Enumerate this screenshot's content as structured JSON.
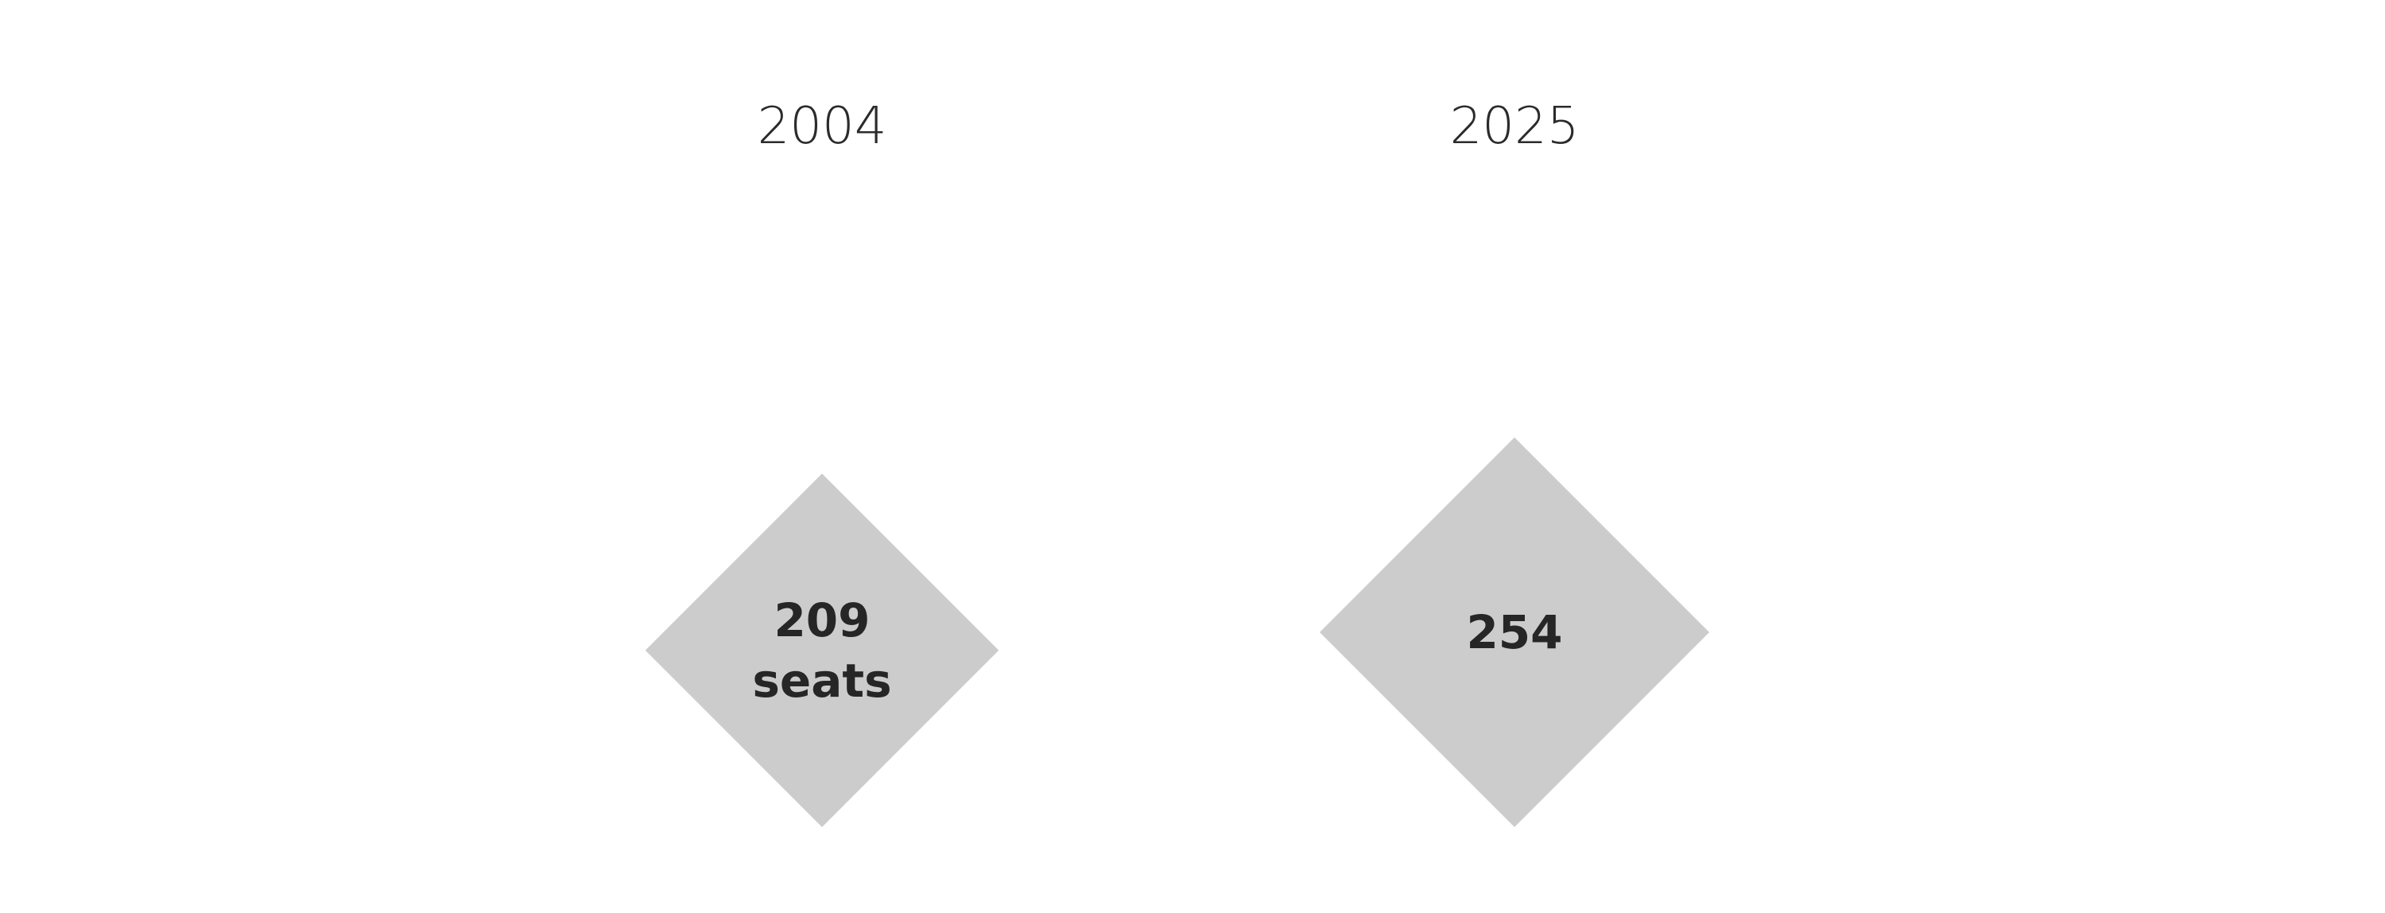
{
  "chart_data": {
    "type": "diamond-area",
    "categories": [
      "2004",
      "2025"
    ],
    "values": [
      209,
      254
    ],
    "value_labels": [
      [
        "209",
        "seats"
      ],
      [
        "254"
      ]
    ],
    "colors": {
      "shape_fill": "#cccccc",
      "label_text": "#262626",
      "year_text": "#2b2b2b",
      "background": "#ffffff"
    }
  }
}
